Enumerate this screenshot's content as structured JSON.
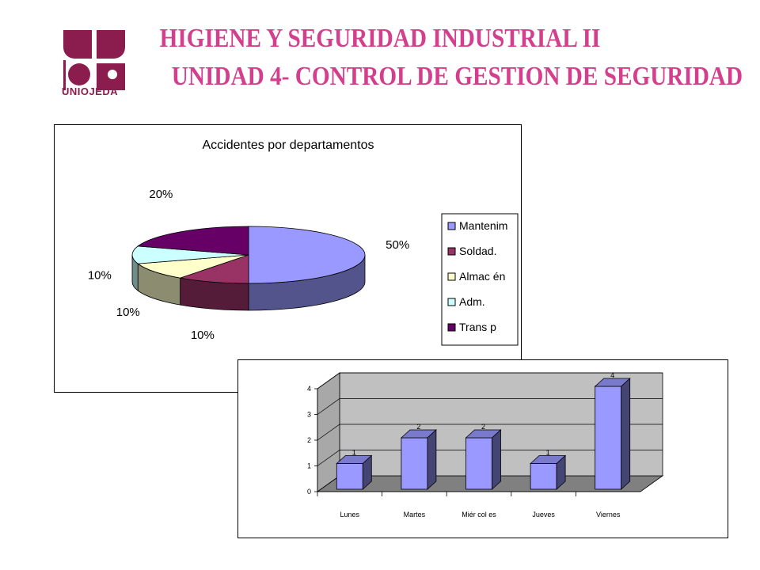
{
  "header": {
    "logo_text": "UNIOJEDA",
    "title_line1": "HIGIENE Y SEGURIDAD INDUSTRIAL II",
    "title_line2": "UNIDAD 4- CONTROL DE GESTION DE SEGURIDAD"
  },
  "colors": {
    "title": "#d43f8d",
    "logo": "#8a1d4e"
  },
  "chart_data": [
    {
      "type": "pie",
      "title": "Accidentes por departamentos",
      "categories": [
        "Mantenim",
        "Soldad.",
        "Almacén",
        "Adm.",
        "Transp"
      ],
      "values": [
        50,
        10,
        10,
        10,
        20
      ],
      "data_labels": [
        "50%",
        "10%",
        "10%",
        "10%",
        "20%"
      ],
      "colors": [
        "#9999ff",
        "#993366",
        "#ffffcc",
        "#ccffff",
        "#660066"
      ],
      "legend_placement": "right",
      "legend_labels": [
        "Mantenim",
        "Soldad.",
        "Almac én",
        "Adm.",
        "Trans p"
      ],
      "style": "3d"
    },
    {
      "type": "bar",
      "title": "",
      "categories": [
        "Lunes",
        "Martes",
        "Miércoles",
        "Jueves",
        "Viernes"
      ],
      "category_labels": [
        "Lunes",
        "Martes",
        "Miér col es",
        "Jueves",
        "Viernes"
      ],
      "values": [
        1,
        2,
        2,
        1,
        4
      ],
      "data_labels": [
        "1",
        "2",
        "2",
        "1",
        "4"
      ],
      "ylim": [
        0,
        4
      ],
      "yticks": [
        0,
        1,
        2,
        3,
        4
      ],
      "ytick_labels": [
        "0",
        "1",
        "2",
        "3",
        "4"
      ],
      "xlabel": "",
      "ylabel": "",
      "grid": true,
      "bar_color": "#9999ff",
      "style": "3d"
    }
  ]
}
